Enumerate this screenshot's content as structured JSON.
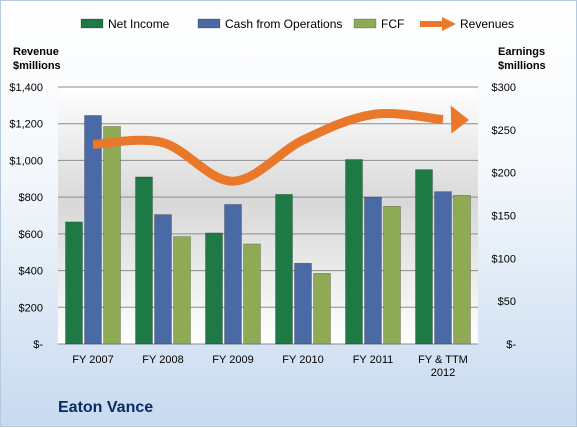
{
  "chart_data": {
    "type": "bar",
    "title": "Eaton Vance",
    "ylabel": "Revenue\n$millions",
    "y2label": "Earnings\n$millions",
    "ylim": [
      0,
      1400
    ],
    "y2lim": [
      0,
      300
    ],
    "yticks": [
      "$-",
      "$200",
      "$400",
      "$600",
      "$800",
      "$1,000",
      "$1,200",
      "$1,400"
    ],
    "y2ticks": [
      "$-",
      "$50",
      "$100",
      "$150",
      "$200",
      "$250",
      "$300"
    ],
    "categories": [
      "FY 2007",
      "FY 2008",
      "FY 2009",
      "FY 2010",
      "FY 2011",
      "FY & TTM\n2012"
    ],
    "series": [
      {
        "name": "Net Income",
        "kind": "bar",
        "axis": "left",
        "color": "#1e7a45",
        "values": [
          665,
          910,
          605,
          815,
          1005,
          950
        ]
      },
      {
        "name": "Cash from Operations",
        "kind": "bar",
        "axis": "left",
        "color": "#4a6aa6",
        "values": [
          1245,
          705,
          760,
          440,
          800,
          830
        ]
      },
      {
        "name": "FCF",
        "kind": "bar",
        "axis": "left",
        "color": "#8faa55",
        "values": [
          1185,
          585,
          545,
          385,
          750,
          810
        ]
      },
      {
        "name": "Revenues",
        "kind": "arrow",
        "axis": "right",
        "color": "#e9782a",
        "values": [
          233,
          235,
          190,
          238,
          268,
          262
        ]
      }
    ],
    "grid": true,
    "legend": "top"
  }
}
